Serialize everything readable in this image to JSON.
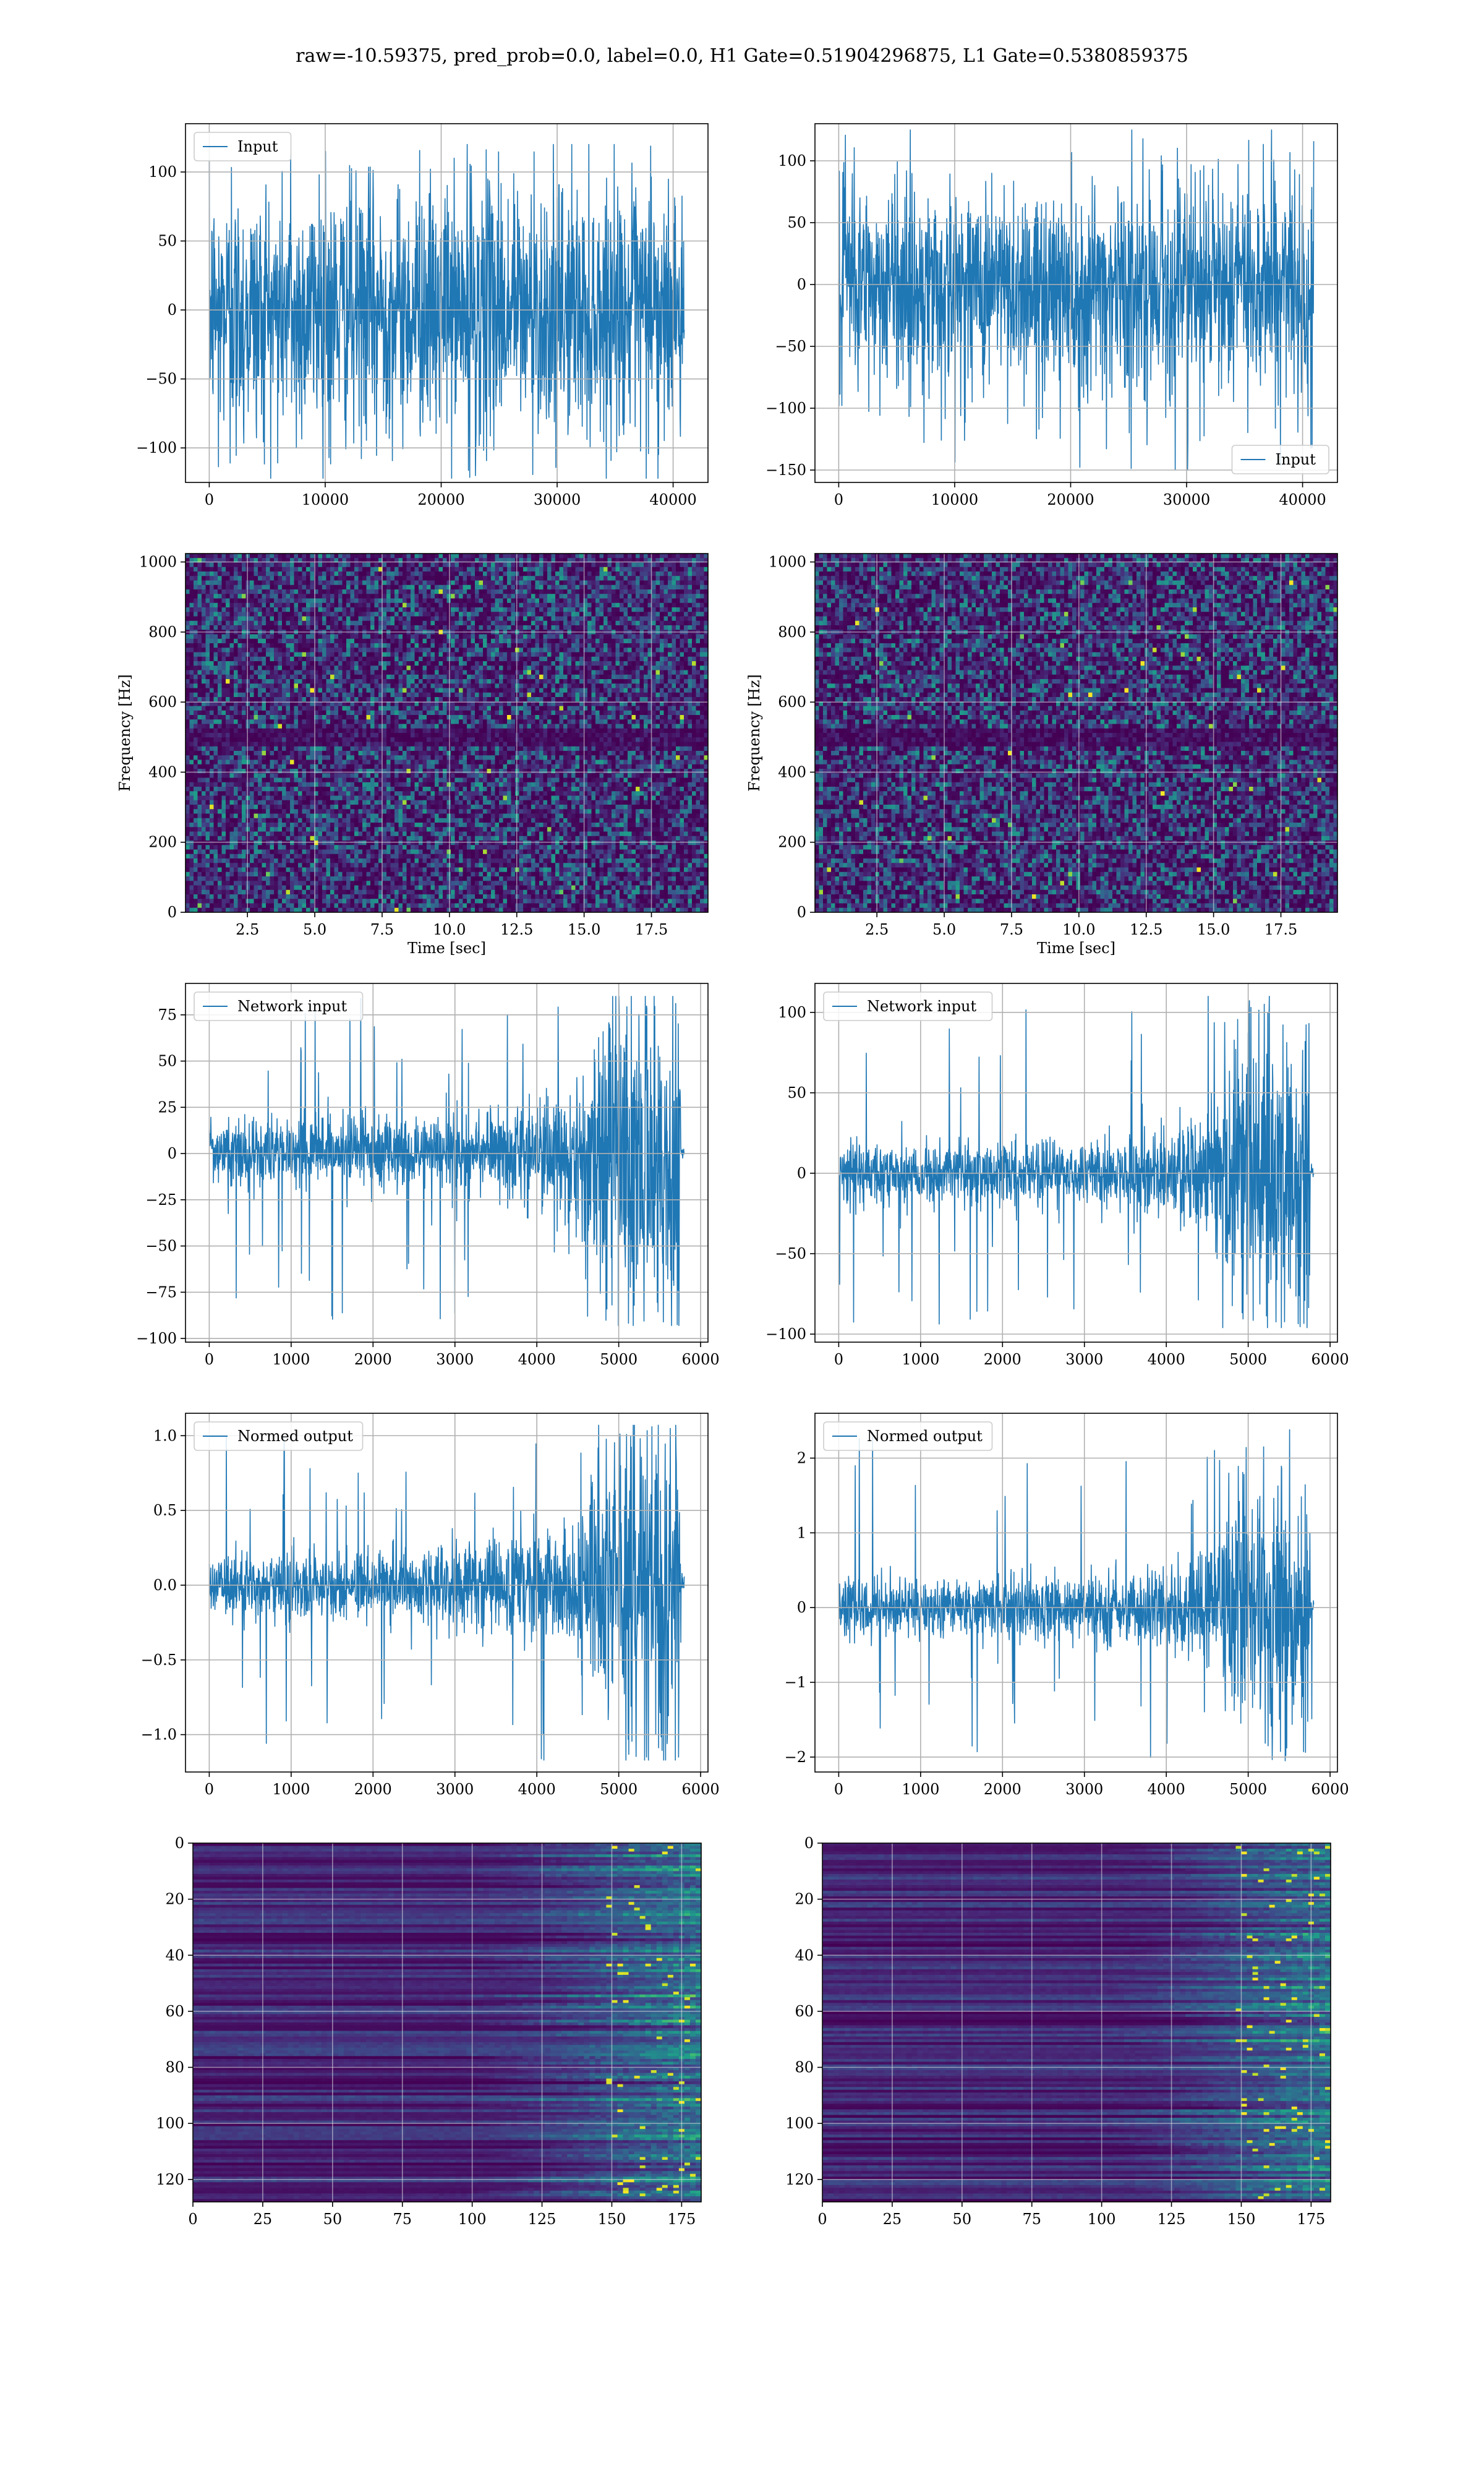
{
  "figure": {
    "suptitle": "raw=-10.59375, pred_prob=0.0, label=0.0, H1 Gate=0.51904296875, L1 Gate=0.5380859375",
    "line_color": "#1f77b4",
    "grid_color": "#b0b0b0",
    "colormap": "viridis"
  },
  "chart_data": [
    {
      "id": "input-h1",
      "type": "line",
      "legend": [
        "Input"
      ],
      "legend_loc": "upper-left",
      "xlim": [
        -2048,
        43008
      ],
      "ylim": [
        -125,
        135
      ],
      "xticks": [
        0,
        10000,
        20000,
        30000,
        40000
      ],
      "yticks": [
        -100,
        -50,
        0,
        50,
        100
      ],
      "xlabel": "",
      "ylabel": "",
      "grid": true,
      "series": [
        {
          "signal": "noise",
          "n": 40960,
          "envelope": {
            "x": [
              0,
              40960
            ],
            "y": [
              [
                -70,
                70
              ],
              [
                -70,
                70
              ]
            ]
          },
          "extremes": [
            -122,
            120
          ]
        }
      ]
    },
    {
      "id": "input-l1",
      "type": "line",
      "legend": [
        "Input"
      ],
      "legend_loc": "lower-right",
      "xlim": [
        -2048,
        43008
      ],
      "ylim": [
        -160,
        130
      ],
      "xticks": [
        0,
        10000,
        20000,
        30000,
        40000
      ],
      "yticks": [
        -150,
        -100,
        -50,
        0,
        50,
        100
      ],
      "xlabel": "",
      "ylabel": "",
      "grid": true,
      "series": [
        {
          "signal": "noise",
          "n": 40960,
          "envelope": {
            "x": [
              0,
              40960
            ],
            "y": [
              [
                -65,
                65
              ],
              [
                -65,
                65
              ]
            ]
          },
          "extremes": [
            -150,
            125
          ]
        }
      ]
    },
    {
      "id": "spec-h1",
      "type": "heatmap",
      "xlim": [
        0.2,
        19.6
      ],
      "ylim": [
        0,
        1024
      ],
      "xticks": [
        2.5,
        5.0,
        7.5,
        10.0,
        12.5,
        15.0,
        17.5
      ],
      "xtick_labels": [
        "2.5",
        "5.0",
        "7.5",
        "10.0",
        "12.5",
        "15.0",
        "17.5"
      ],
      "yticks": [
        0,
        200,
        400,
        600,
        800,
        1000
      ],
      "xlabel": "Time [sec]",
      "ylabel": "Frequency [Hz]",
      "grid": true,
      "pattern": "noise",
      "dark_bands": [
        490,
        510
      ]
    },
    {
      "id": "spec-l1",
      "type": "heatmap",
      "xlim": [
        0.2,
        19.6
      ],
      "ylim": [
        0,
        1024
      ],
      "xticks": [
        2.5,
        5.0,
        7.5,
        10.0,
        12.5,
        15.0,
        17.5
      ],
      "xtick_labels": [
        "2.5",
        "5.0",
        "7.5",
        "10.0",
        "12.5",
        "15.0",
        "17.5"
      ],
      "yticks": [
        0,
        200,
        400,
        600,
        800,
        1000
      ],
      "xlabel": "Time [sec]",
      "ylabel": "Frequency [Hz]",
      "grid": true,
      "pattern": "noise",
      "dark_bands": [
        490,
        510
      ]
    },
    {
      "id": "netin-h1",
      "type": "line",
      "legend": [
        "Network input"
      ],
      "legend_loc": "upper-left",
      "xlim": [
        -290,
        6090
      ],
      "ylim": [
        -102,
        92
      ],
      "xticks": [
        0,
        1000,
        2000,
        3000,
        4000,
        5000,
        6000
      ],
      "yticks": [
        -100,
        -75,
        -50,
        -25,
        0,
        25,
        50,
        75
      ],
      "xlabel": "",
      "ylabel": "",
      "grid": true,
      "series": [
        {
          "signal": "noise",
          "n": 5800,
          "envelope": {
            "x": [
              0,
              3000,
              4000,
              4500,
              4800,
              5000,
              5300,
              5750,
              5760,
              5800
            ],
            "y": [
              [
                -15,
                15
              ],
              [
                -17,
                17
              ],
              [
                -24,
                24
              ],
              [
                -35,
                30
              ],
              [
                -65,
                60
              ],
              [
                -78,
                72
              ],
              [
                -80,
                78
              ],
              [
                -75,
                72
              ],
              [
                -4,
                4
              ],
              [
                -4,
                4
              ]
            ]
          },
          "extremes": [
            -93,
            85
          ]
        }
      ]
    },
    {
      "id": "netin-l1",
      "type": "line",
      "legend": [
        "Network input"
      ],
      "legend_loc": "upper-left",
      "xlim": [
        -290,
        6090
      ],
      "ylim": [
        -105,
        118
      ],
      "xticks": [
        0,
        1000,
        2000,
        3000,
        4000,
        5000,
        6000
      ],
      "yticks": [
        -100,
        -50,
        0,
        50,
        100
      ],
      "xlabel": "",
      "ylabel": "",
      "grid": true,
      "series": [
        {
          "signal": "noise",
          "n": 5800,
          "envelope": {
            "x": [
              0,
              3000,
              4000,
              4500,
              4800,
              5000,
              5300,
              5750,
              5760,
              5800
            ],
            "y": [
              [
                -15,
                15
              ],
              [
                -17,
                17
              ],
              [
                -22,
                22
              ],
              [
                -30,
                32
              ],
              [
                -60,
                62
              ],
              [
                -75,
                68
              ],
              [
                -78,
                70
              ],
              [
                -75,
                65
              ],
              [
                -4,
                4
              ],
              [
                -4,
                4
              ]
            ]
          },
          "extremes": [
            -96,
            110
          ]
        }
      ]
    },
    {
      "id": "normed-h1",
      "type": "line",
      "legend": [
        "Normed output"
      ],
      "legend_loc": "upper-left",
      "xlim": [
        -290,
        6090
      ],
      "ylim": [
        -1.25,
        1.15
      ],
      "xticks": [
        0,
        1000,
        2000,
        3000,
        4000,
        5000,
        6000
      ],
      "yticks": [
        -1.0,
        -0.5,
        0.0,
        0.5,
        1.0
      ],
      "ytick_labels": [
        "−1.0",
        "−0.5",
        "0.0",
        "0.5",
        "1.0"
      ],
      "xlabel": "",
      "ylabel": "",
      "grid": true,
      "series": [
        {
          "signal": "noise",
          "n": 5800,
          "envelope": {
            "x": [
              0,
              3000,
              4000,
              4500,
              4800,
              5000,
              5300,
              5750,
              5760,
              5800
            ],
            "y": [
              [
                -0.17,
                0.17
              ],
              [
                -0.2,
                0.2
              ],
              [
                -0.28,
                0.28
              ],
              [
                -0.42,
                0.36
              ],
              [
                -0.78,
                0.72
              ],
              [
                -0.9,
                0.85
              ],
              [
                -0.95,
                0.92
              ],
              [
                -0.88,
                0.85
              ],
              [
                -0.05,
                0.05
              ],
              [
                -0.05,
                0.05
              ]
            ]
          },
          "extremes": [
            -1.17,
            1.07
          ]
        }
      ]
    },
    {
      "id": "normed-l1",
      "type": "line",
      "legend": [
        "Normed output"
      ],
      "legend_loc": "upper-left",
      "xlim": [
        -290,
        6090
      ],
      "ylim": [
        -2.2,
        2.6
      ],
      "xticks": [
        0,
        1000,
        2000,
        3000,
        4000,
        5000,
        6000
      ],
      "yticks": [
        -2,
        -1,
        0,
        1,
        2
      ],
      "ytick_labels": [
        "−2",
        "−1",
        "0",
        "1",
        "2"
      ],
      "xlabel": "",
      "ylabel": "",
      "grid": true,
      "series": [
        {
          "signal": "noise",
          "n": 5800,
          "envelope": {
            "x": [
              0,
              3000,
              4000,
              4500,
              4800,
              5000,
              5300,
              5750,
              5760,
              5800
            ],
            "y": [
              [
                -0.3,
                0.3
              ],
              [
                -0.35,
                0.35
              ],
              [
                -0.45,
                0.45
              ],
              [
                -0.6,
                0.65
              ],
              [
                -1.25,
                1.3
              ],
              [
                -1.5,
                1.45
              ],
              [
                -1.6,
                1.5
              ],
              [
                -1.5,
                1.35
              ],
              [
                -0.08,
                0.08
              ],
              [
                -0.08,
                0.08
              ]
            ]
          },
          "extremes": [
            -2.05,
            2.38
          ]
        }
      ]
    },
    {
      "id": "features-h1",
      "type": "heatmap",
      "xlim": [
        0,
        182
      ],
      "ylim": [
        128,
        0
      ],
      "xticks": [
        0,
        25,
        50,
        75,
        100,
        125,
        150,
        175
      ],
      "yticks": [
        0,
        20,
        40,
        60,
        80,
        100,
        120
      ],
      "xlabel": "",
      "ylabel": "",
      "grid": true,
      "pattern": "feature-rows",
      "rows": 128,
      "cols": 182
    },
    {
      "id": "features-l1",
      "type": "heatmap",
      "xlim": [
        0,
        182
      ],
      "ylim": [
        128,
        0
      ],
      "xticks": [
        0,
        25,
        50,
        75,
        100,
        125,
        150,
        175
      ],
      "yticks": [
        0,
        20,
        40,
        60,
        80,
        100,
        120
      ],
      "xlabel": "",
      "ylabel": "",
      "grid": true,
      "pattern": "feature-rows",
      "rows": 128,
      "cols": 182
    }
  ]
}
